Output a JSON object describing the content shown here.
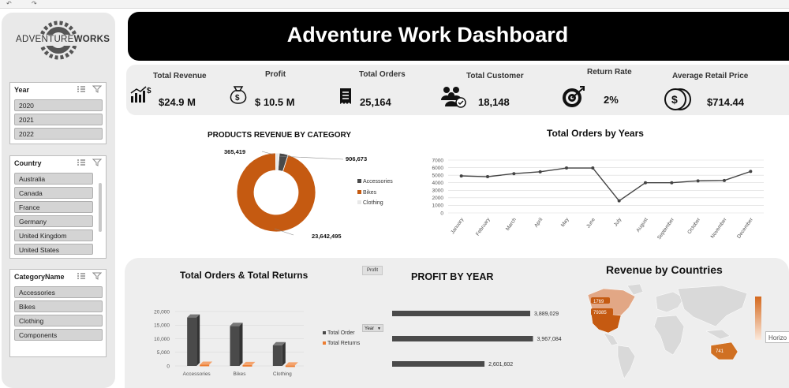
{
  "toolbar": {
    "undo_glyph": "↶",
    "redo_glyph": "↷"
  },
  "logo": {
    "text_a": "ADVENTURE",
    "text_b": "WORKS"
  },
  "title": "Adventure Work Dashboard",
  "slicers": {
    "year": {
      "title": "Year",
      "items": [
        "2020",
        "2021",
        "2022"
      ]
    },
    "country": {
      "title": "Country",
      "items": [
        "Australia",
        "Canada",
        "France",
        "Germany",
        "United Kingdom",
        "United States"
      ]
    },
    "category": {
      "title": "CategoryName",
      "items": [
        "Accessories",
        "Bikes",
        "Clothing",
        "Components"
      ]
    }
  },
  "kpis": [
    {
      "label": "Total Revenue",
      "value": "$24.9 M",
      "icon": "revenue-chart-icon"
    },
    {
      "label": "Profit",
      "value": "$ 10.5 M",
      "icon": "money-bag-icon"
    },
    {
      "label": "Total Orders",
      "value": "25,164",
      "icon": "receipt-icon"
    },
    {
      "label": "Total Customer",
      "value": "18,148",
      "icon": "customers-icon"
    },
    {
      "label": "Return Rate",
      "value": "2%",
      "icon": "target-icon"
    },
    {
      "label": "Average Retail Price",
      "value": "$714.44",
      "icon": "coins-icon"
    }
  ],
  "colors": {
    "accent": "#c55a11",
    "dark": "#4a4a4a",
    "black": "#000000",
    "panel": "#eeeeee"
  },
  "charts": {
    "category": {
      "title": "PRODUCTS REVENUE BY CATEGORY",
      "labels": [
        "365,419",
        "906,673",
        "23,642,495"
      ],
      "legend": [
        "Accessories",
        "Bikes",
        "Clothing"
      ]
    },
    "orders_years": {
      "title": "Total Orders by Years",
      "yticks": [
        "7000",
        "6000",
        "5000",
        "4000",
        "3000",
        "2000",
        "1000",
        "0"
      ],
      "months": [
        "January",
        "February",
        "March",
        "April",
        "May",
        "June",
        "July",
        "August",
        "September",
        "October",
        "November",
        "December"
      ]
    },
    "orders_returns": {
      "title": "Total Orders & Total Returns",
      "button": "Profit",
      "yticks": [
        "20,000",
        "15,000",
        "10,000",
        "5,000",
        "0"
      ],
      "categories": [
        "Accessories",
        "Bikes",
        "Clothing"
      ],
      "legend": [
        "Total Order",
        "Total Returns"
      ],
      "filter": "Year"
    },
    "profit_year": {
      "title": "PROFIT BY YEAR",
      "labels": [
        "3,889,029",
        "3,967,084",
        "2,601,602"
      ]
    },
    "countries": {
      "title": "Revenue by Countries",
      "labels": [
        "1769",
        "79385",
        "741"
      ],
      "cut_label": "Horizo"
    }
  },
  "chart_data": [
    {
      "type": "pie",
      "title": "PRODUCTS REVENUE BY CATEGORY",
      "categories": [
        "Accessories",
        "Bikes",
        "Clothing"
      ],
      "values": [
        906673,
        23642495,
        365419
      ]
    },
    {
      "type": "line",
      "title": "Total Orders by Years",
      "categories": [
        "January",
        "February",
        "March",
        "April",
        "May",
        "June",
        "July",
        "August",
        "September",
        "October",
        "November",
        "December"
      ],
      "values": [
        4900,
        4800,
        5200,
        5450,
        5950,
        5950,
        1600,
        4000,
        4000,
        4250,
        4300,
        5500
      ],
      "ylim": [
        0,
        7000
      ],
      "grid": true
    },
    {
      "type": "bar",
      "title": "Total Orders & Total Returns",
      "categories": [
        "Accessories",
        "Bikes",
        "Clothing"
      ],
      "series": [
        {
          "name": "Total Order",
          "values": [
            17800,
            14700,
            7600
          ]
        },
        {
          "name": "Total Returns",
          "values": [
            450,
            340,
            180
          ]
        }
      ],
      "ylim": [
        0,
        20000
      ]
    },
    {
      "type": "bar",
      "title": "PROFIT BY YEAR",
      "categories": [
        "",
        "",
        ""
      ],
      "values": [
        3889029,
        3967084,
        2601602
      ]
    }
  ]
}
